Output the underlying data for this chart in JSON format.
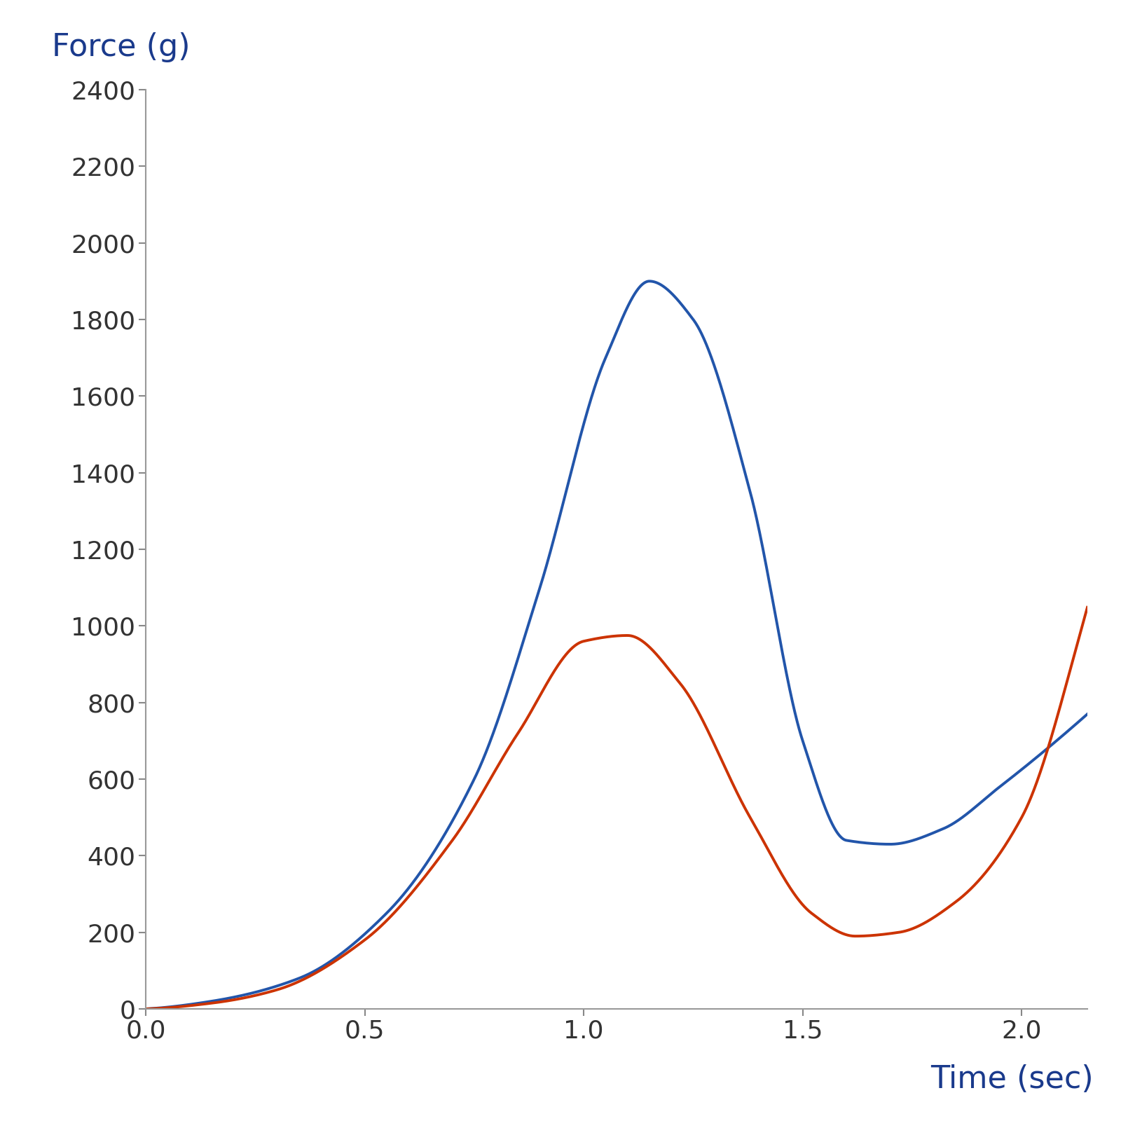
{
  "title_y": "Force (g)",
  "title_x": "Time (sec)",
  "title_color": "#1a3a8c",
  "tick_color": "#333333",
  "line_color_blue": "#2255aa",
  "line_color_red": "#cc3300",
  "background_color": "#ffffff",
  "xlim": [
    0.0,
    2.15
  ],
  "ylim": [
    0,
    2400
  ],
  "xticks": [
    0.0,
    0.5,
    1.0,
    1.5,
    2.0
  ],
  "yticks": [
    0,
    200,
    400,
    600,
    800,
    1000,
    1200,
    1400,
    1600,
    1800,
    2000,
    2200,
    2400
  ],
  "line_width": 2.8,
  "figsize": [
    16.0,
    16.0
  ],
  "dpi": 100,
  "blue_keypoints_t": [
    0.0,
    0.15,
    0.35,
    0.55,
    0.75,
    0.9,
    1.05,
    1.15,
    1.25,
    1.38,
    1.5,
    1.6,
    1.7,
    1.82,
    1.95,
    2.1
  ],
  "blue_keypoints_y": [
    0,
    20,
    80,
    250,
    600,
    1100,
    1700,
    1900,
    1800,
    1350,
    700,
    440,
    430,
    470,
    580,
    720
  ],
  "red_keypoints_t": [
    0.0,
    0.15,
    0.3,
    0.5,
    0.7,
    0.85,
    1.0,
    1.1,
    1.22,
    1.38,
    1.52,
    1.62,
    1.72,
    1.85,
    2.0,
    2.1
  ],
  "red_keypoints_y": [
    0,
    15,
    50,
    180,
    440,
    720,
    960,
    975,
    850,
    500,
    250,
    190,
    200,
    280,
    500,
    840
  ]
}
